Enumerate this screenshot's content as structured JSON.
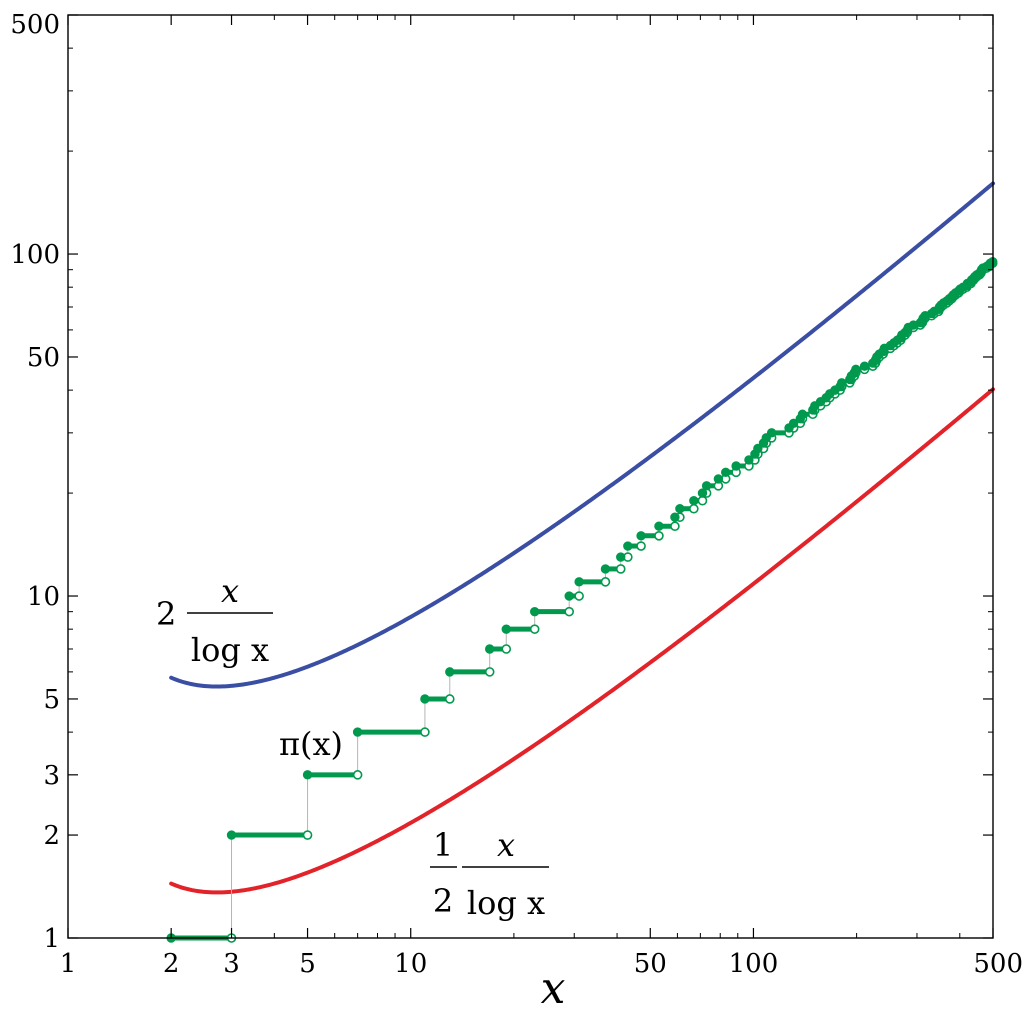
{
  "chart_data": {
    "type": "line",
    "title": "",
    "xlabel": "x",
    "ylabel": "",
    "xscale": "log",
    "yscale": "log",
    "xlim": [
      1,
      500
    ],
    "ylim": [
      1,
      500
    ],
    "xticks": [
      1,
      2,
      3,
      5,
      10,
      50,
      100,
      500
    ],
    "xtick_labels": [
      "1",
      "2",
      "3",
      "5",
      "10",
      "50",
      "100",
      "500"
    ],
    "yticks": [
      1,
      2,
      3,
      5,
      10,
      50,
      100,
      500
    ],
    "ytick_labels": [
      "1",
      "2",
      "3",
      "5",
      "10",
      "50",
      "100",
      "500"
    ],
    "grid": false,
    "colors": {
      "upper": "#3a4ea3",
      "lower": "#e3232a",
      "pi": "#00994d"
    },
    "series": [
      {
        "name": "upper-bound",
        "label_prefix": "2",
        "label_num": "x",
        "label_den": "log x",
        "formula": "2x/ln x",
        "x_range": [
          2,
          500
        ],
        "sample_x": [
          2,
          2.72,
          5,
          10,
          50,
          100,
          500
        ],
        "sample_y": [
          5.77,
          5.44,
          6.21,
          8.69,
          25.56,
          43.43,
          160.9
        ]
      },
      {
        "name": "prime-counting",
        "label_text": "π(x)",
        "style": "step",
        "primes": [
          2,
          3,
          5,
          7,
          11,
          13,
          17,
          19,
          23,
          29,
          31,
          37,
          41,
          43,
          47,
          53,
          59,
          61,
          67,
          71,
          73,
          79,
          83,
          89,
          97,
          101,
          103,
          107,
          109,
          113,
          127,
          131,
          137,
          139,
          149,
          151,
          157,
          163,
          167,
          173,
          179,
          181,
          191,
          193,
          197,
          199,
          211,
          223,
          227,
          229,
          233,
          239,
          241,
          251,
          257,
          263,
          269,
          271,
          277,
          281,
          283,
          293,
          307,
          311,
          313,
          317,
          331,
          337,
          347,
          349,
          353,
          359,
          367,
          373,
          379,
          383,
          389,
          397,
          401,
          409,
          419,
          421,
          431,
          433,
          439,
          443,
          449,
          457,
          461,
          463,
          467,
          479,
          487,
          491,
          499
        ],
        "initial": {
          "x_start": 2,
          "x_end": 3,
          "y": 1
        },
        "final_value": 95
      },
      {
        "name": "lower-bound",
        "label_prefix_num": "1",
        "label_prefix_den": "2",
        "label_num": "x",
        "label_den": "log x",
        "formula": "x/(2 ln x)",
        "x_range": [
          2,
          500
        ],
        "sample_x": [
          2,
          2.72,
          5,
          10,
          50,
          100,
          500
        ],
        "sample_y": [
          1.44,
          1.36,
          1.55,
          2.17,
          6.39,
          10.86,
          40.22
        ]
      }
    ]
  }
}
